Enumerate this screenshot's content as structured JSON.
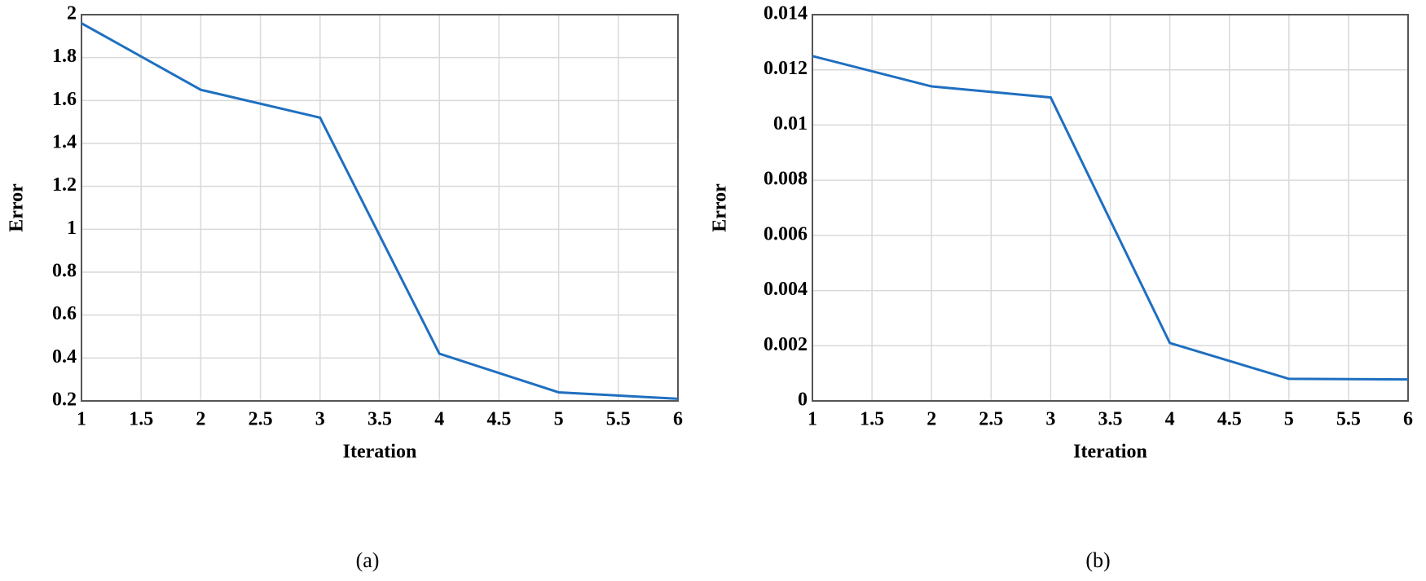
{
  "chart_data": [
    {
      "type": "line",
      "caption": "(a)",
      "xlabel": "Iteration",
      "ylabel": "Error",
      "x": [
        1,
        2,
        3,
        4,
        5,
        6
      ],
      "series": [
        {
          "color": "#1f6fc0",
          "values": [
            1.96,
            1.65,
            1.52,
            0.42,
            0.24,
            0.21
          ]
        }
      ],
      "xlim": [
        1,
        6
      ],
      "xticks": [
        1,
        1.5,
        2,
        2.5,
        3,
        3.5,
        4,
        4.5,
        5,
        5.5,
        6
      ],
      "ylim": [
        0.2,
        2
      ],
      "yticks": [
        0.2,
        0.4,
        0.6,
        0.8,
        1,
        1.2,
        1.4,
        1.6,
        1.8,
        2
      ],
      "grid": true
    },
    {
      "type": "line",
      "caption": "(b)",
      "xlabel": "Iteration",
      "ylabel": "Error",
      "x": [
        1,
        2,
        3,
        4,
        5,
        6
      ],
      "series": [
        {
          "color": "#1f6fc0",
          "values": [
            0.0125,
            0.0114,
            0.011,
            0.0021,
            0.0008,
            0.00078
          ]
        }
      ],
      "xlim": [
        1,
        6
      ],
      "xticks": [
        1,
        1.5,
        2,
        2.5,
        3,
        3.5,
        4,
        4.5,
        5,
        5.5,
        6
      ],
      "ylim": [
        0,
        0.014
      ],
      "yticks": [
        0,
        0.002,
        0.004,
        0.006,
        0.008,
        0.01,
        0.012,
        0.014
      ],
      "grid": true
    }
  ]
}
